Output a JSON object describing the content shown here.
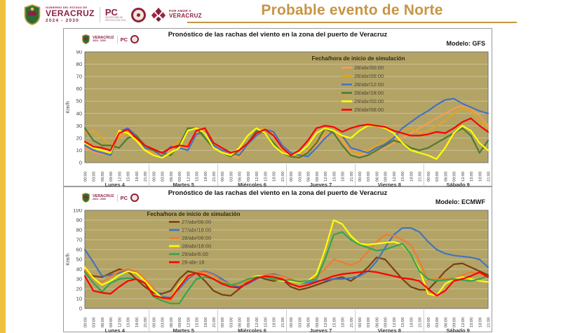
{
  "page": {
    "title": "Probable evento de Norte",
    "accent_color": "#C79543",
    "strip_color": "#EEC13F"
  },
  "header": {
    "logos": {
      "gov_line1": "GOBIERNO DEL ESTADO DE",
      "gov_line2": "VERACRUZ",
      "gov_line3": "2024 - 2030",
      "pc": "PC",
      "pc_sub1": "SECRETARÍA DE",
      "pc_sub2": "PROTECCIÓN CIVIL",
      "amor_line1": "POR AMOR A",
      "amor_line2": "VERACRUZ"
    }
  },
  "chart_data": [
    {
      "type": "line",
      "title": "Pronóstico de las rachas del viento en la zona del puerto de Veracruz",
      "model_label": "Modelo: GFS",
      "legend_title": "Fecha/hora de inicio de simulación",
      "legend_position": "top-right",
      "ylabel": "Km/h",
      "ylim": [
        0,
        90
      ],
      "ytick_step": 10,
      "grid": true,
      "plot_bg": "#B3A466",
      "grid_color": "#C9BE92",
      "days": [
        "Lunes 4",
        "Martes 5",
        "Miércoles 6",
        "Jueves 7",
        "Viernes 8",
        "Sábado 9"
      ],
      "hours": [
        "00:00",
        "03:00",
        "06:00",
        "09:00",
        "12:00",
        "15:00",
        "18:00",
        "21:00"
      ],
      "series": [
        {
          "name": "28/abr/00:00",
          "color": "#F49C54",
          "values": [
            12,
            9,
            7,
            6,
            22,
            26,
            20,
            10,
            8,
            5,
            10,
            14,
            12,
            25,
            27,
            12,
            9,
            5,
            4,
            16,
            24,
            28,
            22,
            10,
            6,
            3,
            8,
            14,
            22,
            25,
            18,
            8,
            6,
            8,
            10,
            12,
            16,
            20,
            24,
            28,
            32,
            36,
            40,
            44,
            46,
            44,
            38,
            30
          ]
        },
        {
          "name": "28/abr/06:00",
          "color": "#DFA520",
          "values": [
            24,
            26,
            20,
            14,
            20,
            24,
            18,
            12,
            8,
            6,
            12,
            18,
            14,
            22,
            26,
            14,
            10,
            7,
            5,
            14,
            26,
            28,
            24,
            12,
            8,
            5,
            10,
            18,
            24,
            27,
            20,
            10,
            8,
            10,
            14,
            18,
            22,
            26,
            28,
            24,
            26,
            30,
            34,
            40,
            44,
            42,
            34,
            28
          ]
        },
        {
          "name": "28/abr/12:00",
          "color": "#4472C4",
          "values": [
            14,
            10,
            8,
            6,
            25,
            28,
            22,
            12,
            10,
            5,
            13,
            12,
            10,
            23,
            25,
            14,
            10,
            8,
            6,
            15,
            22,
            27,
            25,
            14,
            8,
            6,
            5,
            12,
            20,
            26,
            22,
            12,
            10,
            8,
            12,
            15,
            20,
            28,
            33,
            38,
            42,
            47,
            51,
            52,
            48,
            45,
            42,
            40
          ]
        },
        {
          "name": "28/abr/18:00",
          "color": "#4E7A2F",
          "values": [
            28,
            18,
            14,
            14,
            12,
            20,
            22,
            14,
            10,
            8,
            6,
            14,
            28,
            28,
            20,
            12,
            8,
            5,
            10,
            16,
            26,
            24,
            16,
            8,
            5,
            4,
            8,
            16,
            28,
            24,
            14,
            6,
            4,
            6,
            10,
            14,
            18,
            16,
            12,
            10,
            12,
            16,
            20,
            24,
            28,
            22,
            8,
            18
          ]
        },
        {
          "name": "29/abr/00:00",
          "color": "#FFFF00",
          "values": [
            16,
            12,
            10,
            8,
            26,
            24,
            18,
            10,
            6,
            4,
            8,
            12,
            26,
            28,
            24,
            12,
            8,
            6,
            12,
            22,
            28,
            24,
            14,
            8,
            6,
            8,
            14,
            24,
            28,
            26,
            22,
            20,
            26,
            30,
            30,
            28,
            24,
            16,
            10,
            8,
            6,
            3,
            12,
            24,
            30,
            26,
            16,
            10
          ]
        },
        {
          "name": "29/abr/06:00",
          "color": "#FF0000",
          "values": [
            17,
            13,
            12,
            10,
            24,
            27,
            20,
            14,
            11,
            8,
            12,
            14,
            13,
            26,
            28,
            16,
            12,
            8,
            10,
            16,
            24,
            27,
            22,
            12,
            6,
            10,
            18,
            28,
            30,
            29,
            25,
            28,
            30,
            31,
            30,
            29,
            26,
            24,
            22,
            22,
            23,
            25,
            24,
            28,
            33,
            36,
            30,
            25
          ]
        }
      ]
    },
    {
      "type": "line",
      "title": "Pronóstico de las rachas del viento en la zona del puerto de Veracruz",
      "model_label": "Modelo: ECMWF",
      "legend_title": "Fecha/hora de inicio de simulación",
      "legend_position": "top-left",
      "ylabel": "Km/h",
      "ylim": [
        0,
        100
      ],
      "ytick_step": 10,
      "grid": true,
      "plot_bg": "#B3A466",
      "grid_color": "#C9BE92",
      "days": [
        "Lunes 4",
        "Martes 5",
        "Miércoles 6",
        "Jueves 7",
        "Viernes 8",
        "Sábado 9"
      ],
      "hours": [
        "00:00",
        "03:00",
        "06:00",
        "09:00",
        "12:00",
        "15:00",
        "18:00",
        "21:00"
      ],
      "series": [
        {
          "name": "27/abr/06:00",
          "color": "#7B3F10",
          "values": [
            38,
            33,
            32,
            36,
            40,
            38,
            30,
            22,
            16,
            15,
            18,
            30,
            38,
            36,
            28,
            18,
            14,
            13,
            20,
            27,
            33,
            30,
            28,
            30,
            22,
            19,
            21,
            24,
            27,
            30,
            32,
            28,
            34,
            42,
            52,
            50,
            40,
            30,
            22,
            19,
            19,
            28,
            38,
            45,
            46,
            42,
            38,
            34
          ]
        },
        {
          "name": "27/abr/18:00",
          "color": "#4472C4",
          "values": [
            60,
            47,
            33,
            34,
            36,
            40,
            37,
            28,
            20,
            12,
            11,
            20,
            30,
            36,
            38,
            35,
            30,
            24,
            22,
            25,
            30,
            34,
            35,
            33,
            30,
            26,
            26,
            28,
            29,
            30,
            30,
            31,
            33,
            38,
            48,
            62,
            75,
            82,
            82,
            78,
            68,
            60,
            56,
            54,
            53,
            52,
            50,
            42
          ]
        },
        {
          "name": "28/abr/06:00",
          "color": "#ED7D31",
          "values": [
            39,
            30,
            27,
            32,
            38,
            40,
            38,
            30,
            20,
            10,
            8,
            22,
            32,
            36,
            37,
            34,
            28,
            24,
            25,
            28,
            32,
            34,
            34,
            33,
            30,
            27,
            28,
            33,
            40,
            50,
            47,
            44,
            48,
            58,
            68,
            75,
            74,
            70,
            65,
            48,
            29,
            30,
            30,
            31,
            34,
            37,
            35,
            32
          ]
        },
        {
          "name": "28/abr/18:00",
          "color": "#FFFF00",
          "values": [
            42,
            31,
            24,
            28,
            34,
            38,
            36,
            28,
            18,
            11,
            10,
            24,
            33,
            36,
            34,
            30,
            26,
            24,
            26,
            30,
            33,
            33,
            30,
            28,
            28,
            26,
            28,
            35,
            60,
            90,
            86,
            74,
            66,
            65,
            66,
            67,
            68,
            65,
            55,
            40,
            15,
            13,
            25,
            30,
            32,
            30,
            28,
            27
          ]
        },
        {
          "name": "29/abr/6:00",
          "color": "#33A64C",
          "values": [
            37,
            26,
            17,
            26,
            30,
            31,
            30,
            26,
            12,
            8,
            5,
            5,
            18,
            30,
            32,
            30,
            26,
            24,
            26,
            30,
            32,
            32,
            30,
            29,
            29,
            27,
            28,
            30,
            50,
            75,
            78,
            70,
            65,
            62,
            59,
            60,
            63,
            66,
            55,
            38,
            30,
            28,
            29,
            30,
            29,
            28,
            30,
            33
          ]
        },
        {
          "name": "29-abr-18",
          "color": "#FF0000",
          "values": [
            33,
            18,
            16,
            15,
            22,
            28,
            30,
            26,
            13,
            11,
            10,
            22,
            33,
            36,
            34,
            30,
            25,
            22,
            21,
            26,
            31,
            33,
            32,
            30,
            25,
            22,
            24,
            27,
            30,
            33,
            35,
            36,
            37,
            38,
            37,
            35,
            33,
            31,
            30,
            28,
            20,
            13,
            18,
            28,
            30,
            33,
            37,
            32
          ]
        }
      ]
    }
  ]
}
